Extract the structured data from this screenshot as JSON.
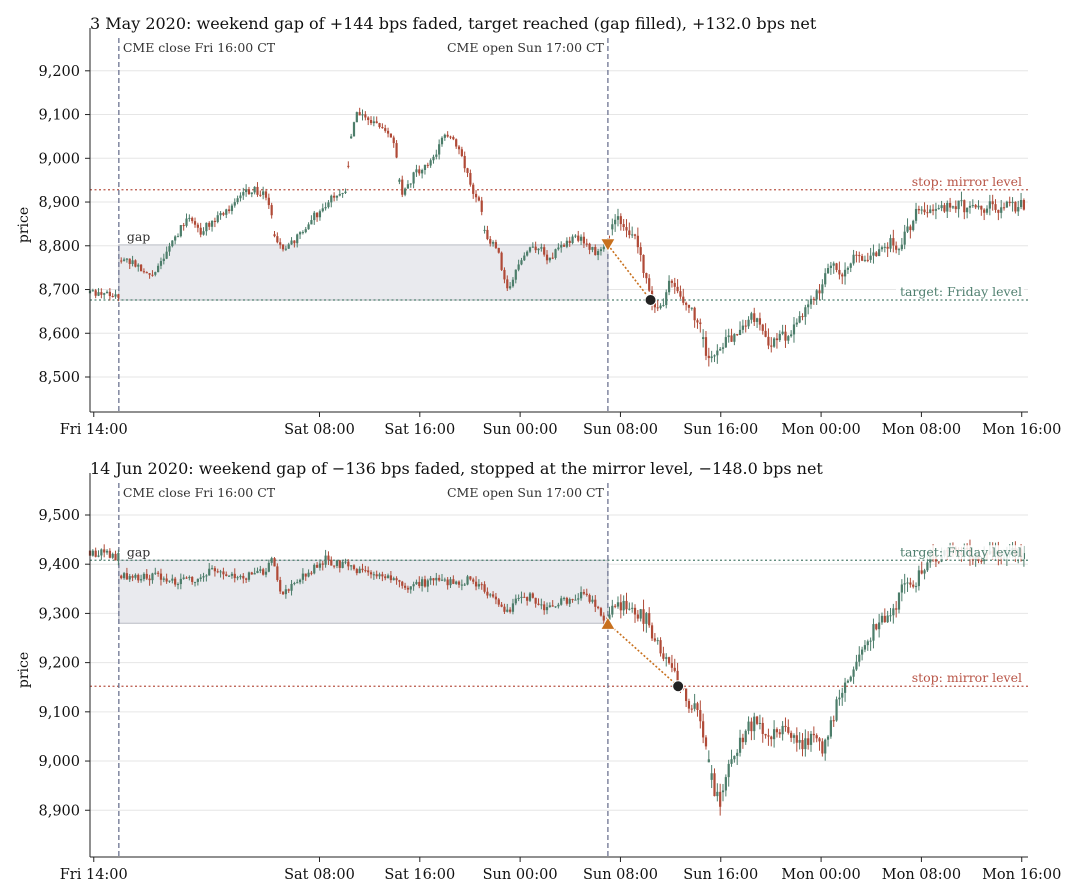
{
  "colors": {
    "up": "#4c7d6a",
    "down": "#b04a37",
    "gap_fill": "#e9eaee",
    "stop_line": "#b85446",
    "target_line": "#4f7f6f",
    "session_line": "#6c7391",
    "entry_marker": "#c8701e",
    "exit_marker": "#222222",
    "grid": "#e6e6e6"
  },
  "chart_data": [
    {
      "type": "candlestick",
      "title": "3 May 2020: weekend gap of +144 bps faded, target reached (gap filled), +132.0 bps net",
      "ylabel": "price",
      "ylim": [
        8420,
        9275
      ],
      "xlim_hours": [
        -0.3,
        74.5
      ],
      "yticks": [
        8500,
        8600,
        8700,
        8800,
        8900,
        9000,
        9100,
        9200
      ],
      "ytick_labels": [
        "8,500",
        "8,600",
        "8,700",
        "8,800",
        "8,900",
        "9,000",
        "9,100",
        "9,200"
      ],
      "xtick_labels": [
        "Fri 14:00",
        "Sat 08:00",
        "Sat 16:00",
        "Sun 00:00",
        "Sun 08:00",
        "Sun 16:00",
        "Mon 00:00",
        "Mon 08:00",
        "Mon 16:00"
      ],
      "xtick_hours": [
        0,
        18,
        26,
        34,
        42,
        50,
        58,
        66,
        74
      ],
      "cme_close_label": "CME close Fri 16:00 CT",
      "cme_open_label": "CME open Sun 17:00 CT",
      "cme_close_hour": 2,
      "cme_open_hour": 41,
      "gap_label": "gap",
      "friday_close": 8676,
      "sunday_open": 8802,
      "stop_level": 8928,
      "stop_label": "stop: mirror level",
      "target_label": "target: Friday level",
      "entry": {
        "hour": 41,
        "price": 8802,
        "direction": "short"
      },
      "exit": {
        "hour": 44.4,
        "price": 8676
      },
      "weekend_path": [
        [
          2,
          8770
        ],
        [
          3,
          8760
        ],
        [
          4,
          8738
        ],
        [
          4.7,
          8730
        ],
        [
          5.5,
          8770
        ],
        [
          6.5,
          8820
        ],
        [
          7.5,
          8870
        ],
        [
          8.5,
          8830
        ],
        [
          9.5,
          8860
        ],
        [
          10.5,
          8875
        ],
        [
          11.5,
          8905
        ],
        [
          12.5,
          8930
        ],
        [
          13.5,
          8920
        ],
        [
          14.1,
          8880
        ],
        [
          14.5,
          8810
        ],
        [
          15.3,
          8790
        ],
        [
          16.3,
          8820
        ],
        [
          17.2,
          8860
        ],
        [
          18.2,
          8880
        ],
        [
          19.3,
          8920
        ],
        [
          20,
          8910
        ],
        [
          20.6,
          9060
        ],
        [
          21,
          9110
        ],
        [
          22,
          9090
        ],
        [
          23,
          9070
        ],
        [
          24,
          9040
        ],
        [
          24.5,
          8920
        ],
        [
          25.5,
          8960
        ],
        [
          26.2,
          8980
        ],
        [
          27,
          9000
        ],
        [
          28,
          9050
        ],
        [
          29,
          9030
        ],
        [
          29.5,
          8990
        ],
        [
          30.2,
          8920
        ],
        [
          30.8,
          8890
        ],
        [
          31.3,
          8820
        ],
        [
          32.2,
          8790
        ],
        [
          32.8,
          8720
        ],
        [
          33.2,
          8700
        ],
        [
          33.8,
          8760
        ],
        [
          34.5,
          8790
        ],
        [
          35.5,
          8800
        ],
        [
          36.2,
          8760
        ],
        [
          37,
          8790
        ],
        [
          37.8,
          8810
        ],
        [
          38.5,
          8820
        ],
        [
          39.5,
          8800
        ],
        [
          40.2,
          8780
        ],
        [
          41,
          8802
        ]
      ],
      "monday_path": [
        [
          41,
          8802
        ],
        [
          41.6,
          8870
        ],
        [
          42.3,
          8855
        ],
        [
          43,
          8820
        ],
        [
          43.6,
          8780
        ],
        [
          44.4,
          8685
        ],
        [
          45.2,
          8660
        ],
        [
          45.8,
          8710
        ],
        [
          46.6,
          8690
        ],
        [
          47.5,
          8660
        ],
        [
          48.2,
          8630
        ],
        [
          48.8,
          8560
        ],
        [
          49.6,
          8540
        ],
        [
          50.3,
          8575
        ],
        [
          51,
          8590
        ],
        [
          51.6,
          8610
        ],
        [
          52.3,
          8645
        ],
        [
          53,
          8625
        ],
        [
          53.7,
          8570
        ],
        [
          54.5,
          8600
        ],
        [
          55.3,
          8590
        ],
        [
          56,
          8630
        ],
        [
          56.8,
          8660
        ],
        [
          57.5,
          8680
        ],
        [
          58.2,
          8720
        ],
        [
          58.8,
          8760
        ],
        [
          59.6,
          8740
        ],
        [
          60.4,
          8770
        ],
        [
          61.2,
          8780
        ],
        [
          62,
          8765
        ],
        [
          62.8,
          8790
        ],
        [
          63.5,
          8810
        ],
        [
          64.3,
          8800
        ],
        [
          65,
          8840
        ],
        [
          65.7,
          8880
        ],
        [
          66.3,
          8890
        ]
      ]
    },
    {
      "type": "candlestick",
      "title": "14 Jun 2020: weekend gap of −136 bps faded, stopped at the mirror level, −148.0 bps net",
      "ylabel": "price",
      "ylim": [
        8805,
        9565
      ],
      "xlim_hours": [
        -0.3,
        74.5
      ],
      "yticks": [
        8900,
        9000,
        9100,
        9200,
        9300,
        9400,
        9500
      ],
      "ytick_labels": [
        "8,900",
        "9,000",
        "9,100",
        "9,200",
        "9,300",
        "9,400",
        "9,500"
      ],
      "xtick_labels": [
        "Fri 14:00",
        "Sat 08:00",
        "Sat 16:00",
        "Sun 00:00",
        "Sun 08:00",
        "Sun 16:00",
        "Mon 00:00",
        "Mon 08:00",
        "Mon 16:00"
      ],
      "xtick_hours": [
        0,
        18,
        26,
        34,
        42,
        50,
        58,
        66,
        74
      ],
      "cme_close_label": "CME close Fri 16:00 CT",
      "cme_open_label": "CME open Sun 17:00 CT",
      "cme_close_hour": 2,
      "cme_open_hour": 41,
      "gap_label": "gap",
      "friday_close": 9408,
      "sunday_open": 9280,
      "stop_level": 9152,
      "stop_label": "stop: mirror level",
      "target_label": "target: Friday level",
      "entry": {
        "hour": 41,
        "price": 9280,
        "direction": "long"
      },
      "exit": {
        "hour": 46.6,
        "price": 9152
      },
      "weekend_path": [
        [
          2,
          9380
        ],
        [
          3.5,
          9370
        ],
        [
          5,
          9380
        ],
        [
          6.5,
          9360
        ],
        [
          8,
          9370
        ],
        [
          9.5,
          9390
        ],
        [
          11,
          9380
        ],
        [
          12.5,
          9375
        ],
        [
          13.8,
          9390
        ],
        [
          14.3,
          9420
        ],
        [
          14.8,
          9340
        ],
        [
          16,
          9360
        ],
        [
          17,
          9380
        ],
        [
          18.5,
          9410
        ],
        [
          19.5,
          9400
        ],
        [
          21,
          9390
        ],
        [
          22.5,
          9380
        ],
        [
          24,
          9370
        ],
        [
          25,
          9350
        ],
        [
          26,
          9360
        ],
        [
          27.5,
          9370
        ],
        [
          29,
          9360
        ],
        [
          30,
          9370
        ],
        [
          31,
          9355
        ],
        [
          32,
          9330
        ],
        [
          33,
          9300
        ],
        [
          34,
          9340
        ],
        [
          35,
          9330
        ],
        [
          36,
          9310
        ],
        [
          37,
          9320
        ],
        [
          38,
          9330
        ],
        [
          39,
          9340
        ],
        [
          40,
          9320
        ],
        [
          41,
          9280
        ]
      ],
      "monday_path": [
        [
          41,
          9280
        ],
        [
          41.5,
          9310
        ],
        [
          42.3,
          9320
        ],
        [
          43.2,
          9300
        ],
        [
          44,
          9290
        ],
        [
          44.8,
          9240
        ],
        [
          45.7,
          9200
        ],
        [
          46.6,
          9155
        ],
        [
          47.4,
          9120
        ],
        [
          48.1,
          9100
        ],
        [
          48.7,
          9040
        ],
        [
          49.3,
          8960
        ],
        [
          49.9,
          8910
        ],
        [
          50.5,
          8980
        ],
        [
          51.3,
          9030
        ],
        [
          52,
          9060
        ],
        [
          52.7,
          9080
        ],
        [
          53.4,
          9060
        ],
        [
          54.2,
          9050
        ],
        [
          55,
          9060
        ],
        [
          55.8,
          9040
        ],
        [
          56.6,
          9030
        ],
        [
          57.4,
          9050
        ],
        [
          58.1,
          9020
        ],
        [
          58.7,
          9060
        ],
        [
          59.3,
          9120
        ],
        [
          60,
          9150
        ],
        [
          60.6,
          9180
        ],
        [
          61.2,
          9220
        ],
        [
          62,
          9260
        ],
        [
          62.8,
          9300
        ],
        [
          63.6,
          9290
        ],
        [
          64.3,
          9340
        ],
        [
          65,
          9360
        ],
        [
          65.6,
          9370
        ],
        [
          66.2,
          9380
        ],
        [
          66.6,
          9420
        ]
      ]
    }
  ]
}
